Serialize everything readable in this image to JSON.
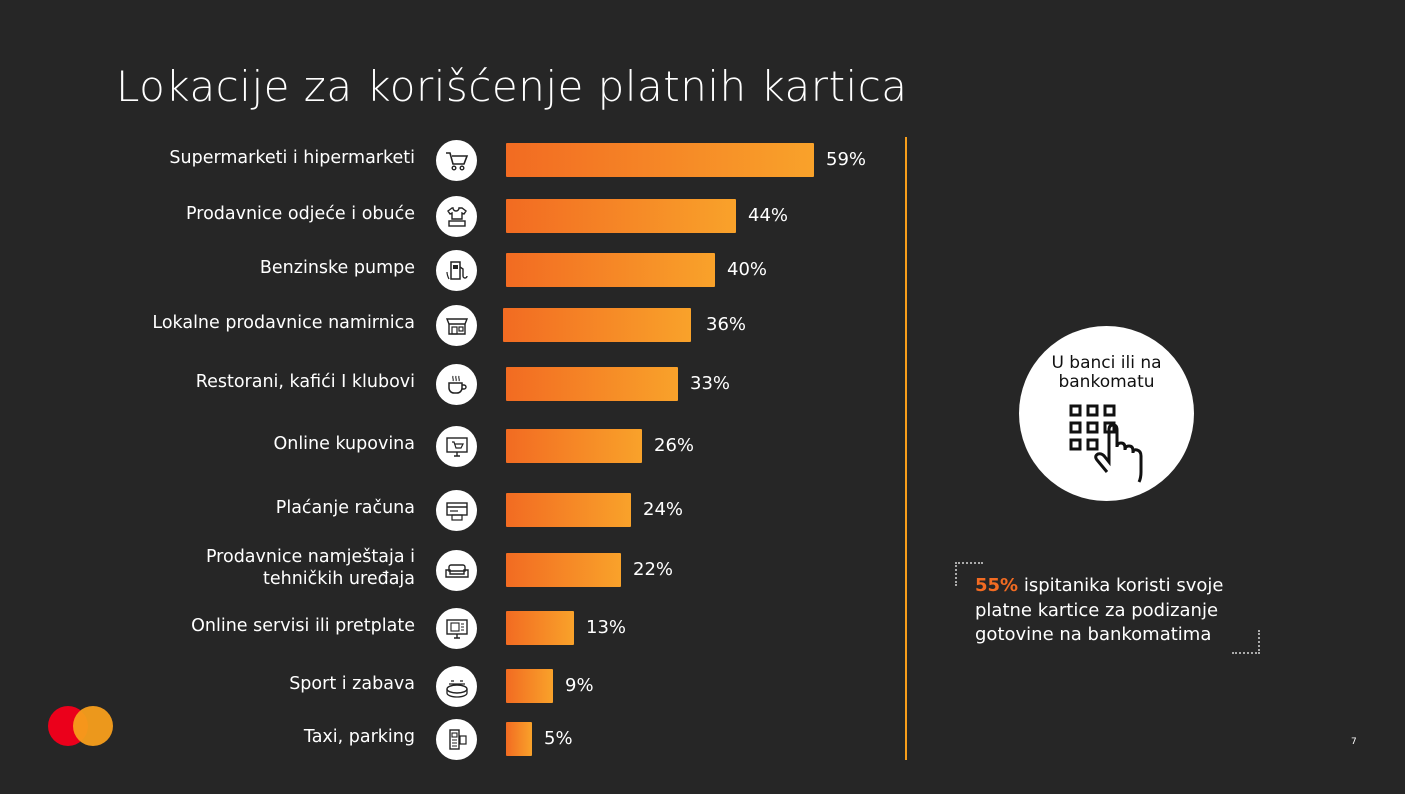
{
  "title": "Lokacije za korišćenje platnih kartica",
  "chart_data": {
    "type": "bar",
    "orientation": "horizontal",
    "categories": [
      "Supermarketi i hipermarketi",
      "Prodavnice odjeće i obuće",
      "Benzinske pumpe",
      "Lokalne prodavnice namirnica",
      "Restorani, kafići I klubovi",
      "Online kupovina",
      "Plaćanje računa",
      "Prodavnice namještaja i tehničkih uređaja",
      "Online servisi ili pretplate",
      "Sport i zabava",
      "Taxi, parking"
    ],
    "values": [
      59,
      44,
      40,
      36,
      33,
      26,
      24,
      22,
      13,
      9,
      5
    ],
    "value_labels": [
      "59%",
      "44%",
      "40%",
      "36%",
      "33%",
      "26%",
      "24%",
      "22%",
      "13%",
      "9%",
      "5%"
    ],
    "icons": [
      "shopping-cart-icon",
      "clothing-icon",
      "fuel-pump-icon",
      "shop-icon",
      "coffee-cup-icon",
      "online-shop-icon",
      "bill-payment-icon",
      "sofa-icon",
      "online-service-icon",
      "stadium-icon",
      "parking-meter-icon"
    ],
    "xlim": [
      0,
      59
    ],
    "grid": false,
    "colors": {
      "bar_start": "#f26b22",
      "bar_end": "#f9a22a"
    }
  },
  "label_lines": {
    "furniture": [
      "Prodavnice namještaja i",
      "tehničkih uređaja"
    ]
  },
  "bank_box": {
    "title_line1": "U banci ili na",
    "title_line2": "bankomatu",
    "icon": "atm-keypad-icon"
  },
  "callout": {
    "highlight": "55%",
    "text": " ispitanika koristi svoje platne kartice za podizanje gotovine na bankomatima"
  },
  "page_number": "7",
  "colors": {
    "background": "#262626",
    "accent_orange": "#f26b22",
    "divider": "#f79e1b",
    "logo_red": "#eb001b",
    "logo_yellow": "#f79e1b"
  }
}
